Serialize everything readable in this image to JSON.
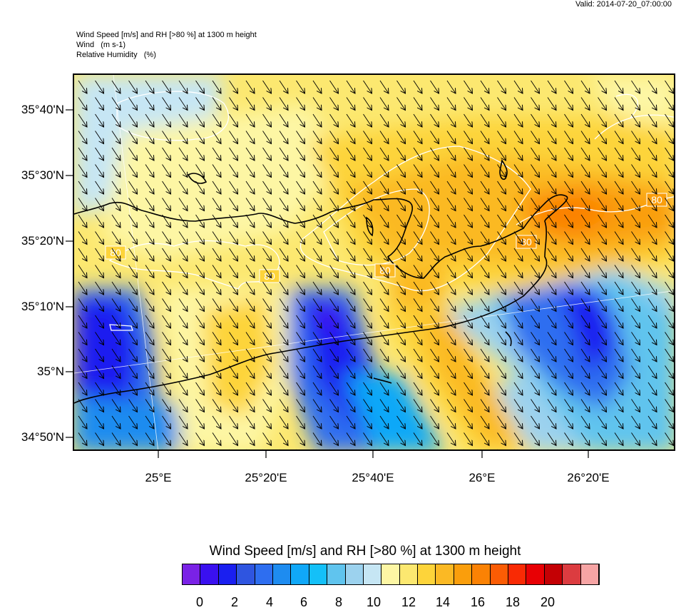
{
  "valid": "Valid: 2014-07-20_07:00:00",
  "header": {
    "line1": "Wind Speed [m/s] and RH [>80 %] at 1300 m height",
    "line2": "Wind   (m s-1)",
    "line3": "Relative Humidity   (%)"
  },
  "map": {
    "y_ticks": [
      "35°40'N",
      "35°30'N",
      "35°20'N",
      "35°10'N",
      "35°N",
      "34°50'N"
    ],
    "x_ticks": [
      "25°E",
      "25°20'E",
      "25°40'E",
      "26°E",
      "26°20'E"
    ],
    "contour_labels": [
      "80",
      "80",
      "80",
      "80",
      "80"
    ],
    "wind_direction": "north-northwest flow (arrows pointing south-southeast)"
  },
  "colorbar": {
    "title": "Wind Speed [m/s] and RH [>80 %] at 1300 m height",
    "colors": [
      "#7a22e6",
      "#3a10f0",
      "#1a1ff0",
      "#2f55e0",
      "#2e6ef0",
      "#1e8cf0",
      "#10a8f8",
      "#14c0f8",
      "#60c4ee",
      "#9cd2ee",
      "#c6e6f4",
      "#fdf6a4",
      "#fce870",
      "#fdd43a",
      "#fbb924",
      "#fa9e0c",
      "#fb8204",
      "#fb5c04",
      "#f92a04",
      "#e80004",
      "#c40004",
      "#dc3c40",
      "#f6a4a4"
    ],
    "labels": [
      "0",
      "2",
      "4",
      "6",
      "8",
      "10",
      "12",
      "14",
      "16",
      "18",
      "20"
    ]
  }
}
